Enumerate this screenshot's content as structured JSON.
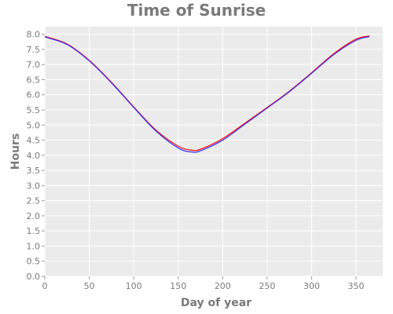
{
  "chart_data": {
    "type": "line",
    "title": "Time of Sunrise",
    "xlabel": "Day of year",
    "ylabel": "Hours",
    "xlim": [
      0,
      380
    ],
    "ylim": [
      0,
      8.25
    ],
    "xticks": [
      0,
      50,
      100,
      150,
      200,
      250,
      300,
      350
    ],
    "xtick_labels": [
      "0",
      "50",
      "100",
      "150",
      "200",
      "250",
      "300",
      "350"
    ],
    "yticks": [
      0,
      0.5,
      1,
      1.5,
      2,
      2.5,
      3,
      3.5,
      4,
      4.5,
      5,
      5.5,
      6,
      6.5,
      7,
      7.5,
      8
    ],
    "ytick_labels": [
      "0.0",
      "0.5",
      "1.0",
      "1.5",
      "2.0",
      "2.5",
      "3.0",
      "3.5",
      "4.0",
      "4.5",
      "5.0",
      "5.5",
      "6.0",
      "6.5",
      "7.0",
      "7.5",
      "8.0"
    ],
    "grid": true,
    "background": "#ebebeb",
    "series": [
      {
        "color": "#ff0000",
        "x": [
          0,
          25,
          50,
          75,
          100,
          125,
          150,
          165,
          175,
          200,
          225,
          250,
          275,
          300,
          325,
          350,
          365
        ],
        "y": [
          7.93,
          7.68,
          7.14,
          6.41,
          5.6,
          4.83,
          4.3,
          4.17,
          4.2,
          4.55,
          5.06,
          5.58,
          6.12,
          6.73,
          7.36,
          7.84,
          7.94
        ]
      },
      {
        "color": "#3333ff",
        "x": [
          0,
          25,
          50,
          75,
          100,
          125,
          150,
          165,
          175,
          200,
          225,
          250,
          275,
          300,
          325,
          350,
          365
        ],
        "y": [
          7.91,
          7.66,
          7.12,
          6.39,
          5.58,
          4.8,
          4.24,
          4.11,
          4.15,
          4.5,
          5.03,
          5.56,
          6.1,
          6.71,
          7.33,
          7.8,
          7.92
        ]
      }
    ]
  }
}
